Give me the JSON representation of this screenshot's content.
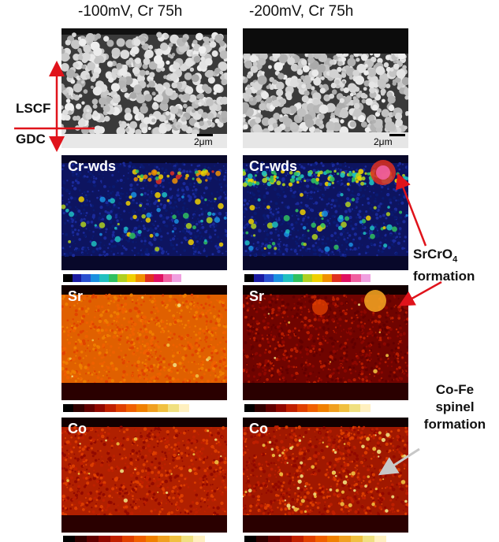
{
  "columns": [
    {
      "title": "-100mV, Cr 75h"
    },
    {
      "title": "-200mV, Cr 75h"
    }
  ],
  "side_labels": {
    "top": "LSCF",
    "bottom": "GDC"
  },
  "scale_bar": "2μm",
  "maps": {
    "cr": "Cr-wds",
    "sr": "Sr",
    "co": "Co"
  },
  "annotations": {
    "srcro4_prefix": "SrCrO",
    "srcro4_sub": "4",
    "srcro4_line2": "formation",
    "cofe_line1": "Co-Fe",
    "cofe_line2": "spinel",
    "cofe_line3": "formation"
  },
  "colors": {
    "arrow_red": "#e0131b",
    "arrow_gray": "#c8c8c8",
    "rainbow": [
      "#000000",
      "#1a1aa0",
      "#2a50d0",
      "#1a90e0",
      "#20c0c0",
      "#30c060",
      "#b0d020",
      "#f0d000",
      "#f09000",
      "#e03020",
      "#e01060",
      "#f060a0",
      "#f0a0e0"
    ],
    "heat": [
      "#000000",
      "#300000",
      "#600000",
      "#900800",
      "#c02000",
      "#e04000",
      "#f06000",
      "#f08000",
      "#f0a020",
      "#f0c040",
      "#f0e080",
      "#fff0c0"
    ]
  }
}
